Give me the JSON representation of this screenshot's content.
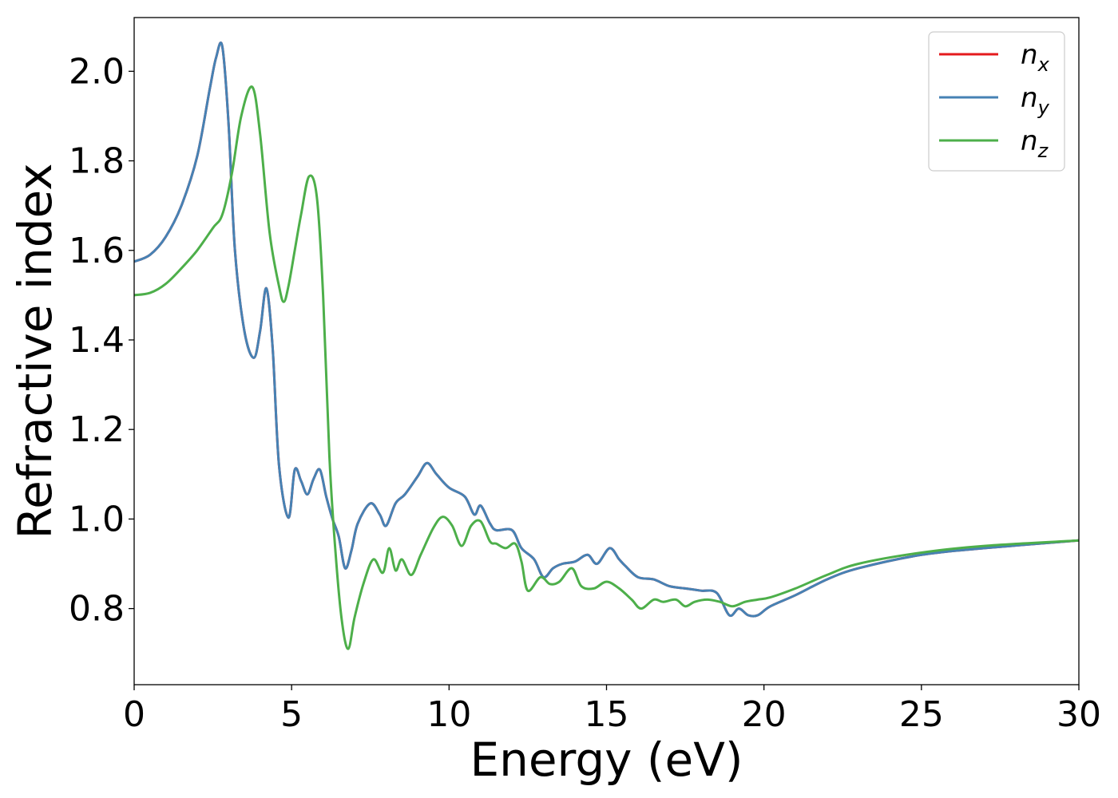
{
  "chart_data": {
    "type": "line",
    "xlabel": "Energy (eV)",
    "ylabel": "Refractive index",
    "xlim": [
      0,
      30
    ],
    "ylim": [
      0.63,
      2.12
    ],
    "xticks": [
      0,
      5,
      10,
      15,
      20,
      25,
      30
    ],
    "yticks": [
      0.8,
      1.0,
      1.2,
      1.4,
      1.6,
      1.8,
      2.0
    ],
    "xtick_labels": [
      "0",
      "5",
      "10",
      "15",
      "20",
      "25",
      "30"
    ],
    "ytick_labels": [
      "0.8",
      "1.0",
      "1.2",
      "1.4",
      "1.6",
      "1.8",
      "2.0"
    ],
    "grid": false,
    "legend_position": "top-right",
    "series": [
      {
        "name": "n_x",
        "legend_base": "n",
        "legend_sub": "x",
        "color": "#e41a1c",
        "x": [
          0,
          0.5,
          1.0,
          1.5,
          2.0,
          2.4,
          2.6,
          2.8,
          3.0,
          3.2,
          3.5,
          3.8,
          4.0,
          4.2,
          4.4,
          4.6,
          4.9,
          5.1,
          5.3,
          5.5,
          5.7,
          5.9,
          6.1,
          6.3,
          6.5,
          6.7,
          6.9,
          7.1,
          7.5,
          7.8,
          8.0,
          8.3,
          8.6,
          9.0,
          9.3,
          9.6,
          10.0,
          10.5,
          10.8,
          11.0,
          11.3,
          11.5,
          12.0,
          12.3,
          12.7,
          13.0,
          13.3,
          13.6,
          14.0,
          14.4,
          14.7,
          15.1,
          15.4,
          15.6,
          16.0,
          16.5,
          17.0,
          17.5,
          18.0,
          18.5,
          18.9,
          19.2,
          19.5,
          19.8,
          20.2,
          21.0,
          22.0,
          23.0,
          25.0,
          27.0,
          30.0
        ],
        "y": [
          1.575,
          1.59,
          1.63,
          1.7,
          1.81,
          1.96,
          2.03,
          2.055,
          1.88,
          1.6,
          1.42,
          1.36,
          1.42,
          1.515,
          1.38,
          1.12,
          1.003,
          1.11,
          1.085,
          1.055,
          1.09,
          1.11,
          1.05,
          1.0,
          0.96,
          0.89,
          0.93,
          0.99,
          1.035,
          1.01,
          0.985,
          1.035,
          1.055,
          1.095,
          1.125,
          1.1,
          1.07,
          1.05,
          1.01,
          1.03,
          0.99,
          0.975,
          0.975,
          0.935,
          0.91,
          0.87,
          0.89,
          0.9,
          0.905,
          0.92,
          0.9,
          0.935,
          0.91,
          0.895,
          0.87,
          0.865,
          0.85,
          0.845,
          0.84,
          0.835,
          0.785,
          0.8,
          0.785,
          0.785,
          0.805,
          0.83,
          0.865,
          0.89,
          0.92,
          0.935,
          0.952
        ]
      },
      {
        "name": "n_y",
        "legend_base": "n",
        "legend_sub": "y",
        "color": "#4682b4",
        "x": [
          0,
          0.5,
          1.0,
          1.5,
          2.0,
          2.4,
          2.6,
          2.8,
          3.0,
          3.2,
          3.5,
          3.8,
          4.0,
          4.2,
          4.4,
          4.6,
          4.9,
          5.1,
          5.3,
          5.5,
          5.7,
          5.9,
          6.1,
          6.3,
          6.5,
          6.7,
          6.9,
          7.1,
          7.5,
          7.8,
          8.0,
          8.3,
          8.6,
          9.0,
          9.3,
          9.6,
          10.0,
          10.5,
          10.8,
          11.0,
          11.3,
          11.5,
          12.0,
          12.3,
          12.7,
          13.0,
          13.3,
          13.6,
          14.0,
          14.4,
          14.7,
          15.1,
          15.4,
          15.6,
          16.0,
          16.5,
          17.0,
          17.5,
          18.0,
          18.5,
          18.9,
          19.2,
          19.5,
          19.8,
          20.2,
          21.0,
          22.0,
          23.0,
          25.0,
          27.0,
          30.0
        ],
        "y": [
          1.575,
          1.59,
          1.63,
          1.7,
          1.81,
          1.96,
          2.03,
          2.055,
          1.88,
          1.6,
          1.42,
          1.36,
          1.42,
          1.515,
          1.38,
          1.12,
          1.003,
          1.11,
          1.085,
          1.055,
          1.09,
          1.11,
          1.05,
          1.0,
          0.96,
          0.89,
          0.93,
          0.99,
          1.035,
          1.01,
          0.985,
          1.035,
          1.055,
          1.095,
          1.125,
          1.1,
          1.07,
          1.05,
          1.01,
          1.03,
          0.99,
          0.975,
          0.975,
          0.935,
          0.91,
          0.87,
          0.89,
          0.9,
          0.905,
          0.92,
          0.9,
          0.935,
          0.91,
          0.895,
          0.87,
          0.865,
          0.85,
          0.845,
          0.84,
          0.835,
          0.785,
          0.8,
          0.785,
          0.785,
          0.805,
          0.83,
          0.865,
          0.89,
          0.92,
          0.935,
          0.952
        ]
      },
      {
        "name": "n_z",
        "legend_base": "n",
        "legend_sub": "z",
        "color": "#4daf4a",
        "x": [
          0,
          0.5,
          1.0,
          1.5,
          2.0,
          2.5,
          2.8,
          3.1,
          3.4,
          3.75,
          4.0,
          4.3,
          4.6,
          4.75,
          4.9,
          5.1,
          5.3,
          5.55,
          5.8,
          6.0,
          6.2,
          6.4,
          6.6,
          6.8,
          7.0,
          7.3,
          7.6,
          7.9,
          8.1,
          8.3,
          8.5,
          8.8,
          9.1,
          9.5,
          9.8,
          10.1,
          10.4,
          10.7,
          11.0,
          11.3,
          11.5,
          11.8,
          12.1,
          12.3,
          12.5,
          12.9,
          13.2,
          13.5,
          13.9,
          14.2,
          14.6,
          15.0,
          15.4,
          15.8,
          16.1,
          16.5,
          16.8,
          17.2,
          17.5,
          17.8,
          18.2,
          18.6,
          19.0,
          19.4,
          19.8,
          20.2,
          21.0,
          22.0,
          23.0,
          25.0,
          27.0,
          30.0
        ],
        "y": [
          1.5,
          1.505,
          1.525,
          1.56,
          1.6,
          1.65,
          1.68,
          1.77,
          1.9,
          1.965,
          1.86,
          1.64,
          1.52,
          1.485,
          1.52,
          1.6,
          1.68,
          1.765,
          1.72,
          1.5,
          1.14,
          0.92,
          0.77,
          0.71,
          0.78,
          0.86,
          0.91,
          0.88,
          0.935,
          0.885,
          0.91,
          0.875,
          0.92,
          0.98,
          1.005,
          0.985,
          0.94,
          0.985,
          0.995,
          0.95,
          0.945,
          0.935,
          0.945,
          0.905,
          0.84,
          0.87,
          0.855,
          0.86,
          0.89,
          0.85,
          0.845,
          0.86,
          0.845,
          0.82,
          0.8,
          0.82,
          0.815,
          0.82,
          0.805,
          0.815,
          0.82,
          0.815,
          0.805,
          0.815,
          0.82,
          0.825,
          0.845,
          0.875,
          0.9,
          0.925,
          0.94,
          0.952
        ]
      }
    ]
  }
}
